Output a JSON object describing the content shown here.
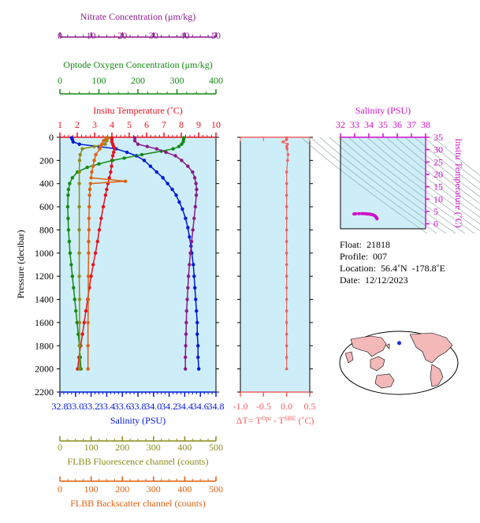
{
  "colors": {
    "nitrate": "#8b1a8b",
    "oxygen": "#128a12",
    "temperature": "#e8101e",
    "salinity": "#0018d8",
    "fluorescence": "#8c8c1a",
    "backscatter": "#e06010",
    "delta": "#f26060",
    "ts": "#d010c8",
    "panel_bg": "#cdeef8"
  },
  "chart_data": [
    {
      "type": "line",
      "name": "main-profile",
      "ylabel": "Pressure (decibar)",
      "ylim": [
        2200,
        0
      ],
      "yticks": [
        "0",
        "200",
        "400",
        "600",
        "800",
        "1000",
        "1200",
        "1400",
        "1600",
        "1800",
        "2000",
        "2200"
      ],
      "axes": {
        "nitrate": {
          "label": "Nitrate Concentration (μm/kg)",
          "range": [
            0,
            50
          ],
          "ticks": [
            "0",
            "10",
            "20",
            "30",
            "40",
            "50"
          ]
        },
        "oxygen": {
          "label": "Optode Oxygen Concentration (μm/kg)",
          "range": [
            0,
            400
          ],
          "ticks": [
            "0",
            "100",
            "200",
            "300",
            "400"
          ]
        },
        "temperature": {
          "label": "Insitu Temperature (˚C)",
          "range": [
            1,
            10
          ],
          "ticks": [
            "1",
            "2",
            "3",
            "4",
            "5",
            "6",
            "7",
            "8",
            "9",
            "10"
          ]
        },
        "salinity": {
          "label": "Salinity (PSU)",
          "range": [
            32.8,
            34.8
          ],
          "ticks": [
            "32.8",
            "33.0",
            "33.2",
            "33.4",
            "33.6",
            "33.8",
            "34.0",
            "34.2",
            "34.4",
            "34.6",
            "34.8"
          ]
        },
        "fluorescence": {
          "label": "FLBB Fluorescence channel (counts)",
          "range": [
            0,
            500
          ],
          "ticks": [
            "0",
            "100",
            "200",
            "300",
            "400",
            "500"
          ]
        },
        "backscatter": {
          "label": "FLBB Backscatter channel (counts)",
          "range": [
            0,
            500
          ],
          "ticks": [
            "0",
            "100",
            "200",
            "300",
            "400",
            "500"
          ]
        }
      },
      "series": [
        {
          "var": "salinity",
          "p": [
            5,
            20,
            40,
            60,
            80,
            100,
            130,
            160,
            200,
            250,
            300,
            350,
            400,
            450,
            500,
            560,
            620,
            700,
            780,
            860,
            940,
            1000,
            1100,
            1200,
            1300,
            1400,
            1500,
            1600,
            1700,
            1800,
            1900,
            2000
          ],
          "values": [
            32.95,
            32.96,
            32.97,
            33.05,
            33.3,
            33.52,
            33.66,
            33.78,
            33.88,
            33.96,
            34.04,
            34.12,
            34.18,
            34.24,
            34.29,
            34.33,
            34.37,
            34.41,
            34.44,
            34.46,
            34.48,
            34.49,
            34.51,
            34.52,
            34.53,
            34.54,
            34.55,
            34.56,
            34.56,
            34.57,
            34.57,
            34.58
          ]
        },
        {
          "var": "temperature",
          "p": [
            5,
            20,
            40,
            60,
            80,
            100,
            130,
            160,
            200,
            250,
            300,
            350,
            400,
            450,
            500,
            600,
            700,
            800,
            900,
            1000,
            1100,
            1200,
            1300,
            1400,
            1500,
            1600,
            1700,
            1800,
            1900,
            2000
          ],
          "values": [
            4.0,
            4.0,
            4.0,
            4.05,
            4.1,
            4.15,
            4.1,
            4.05,
            4.0,
            3.98,
            3.93,
            3.85,
            3.77,
            3.7,
            3.63,
            3.5,
            3.38,
            3.27,
            3.17,
            3.05,
            2.92,
            2.8,
            2.7,
            2.6,
            2.5,
            2.4,
            2.3,
            2.2,
            2.1,
            2.02
          ]
        },
        {
          "var": "oxygen",
          "p": [
            5,
            20,
            40,
            60,
            80,
            100,
            120,
            150,
            180,
            200,
            230,
            260,
            300,
            350,
            400,
            450,
            500,
            600,
            700,
            800,
            900,
            1000,
            1100,
            1200,
            1300,
            1400,
            1500,
            1600,
            1700,
            1800,
            1900,
            2000
          ],
          "values": [
            318,
            317,
            316,
            312,
            305,
            290,
            260,
            210,
            165,
            135,
            100,
            70,
            45,
            32,
            25,
            22,
            21,
            20,
            21,
            22,
            24,
            26,
            29,
            32,
            35,
            38,
            41,
            44,
            47,
            50,
            52,
            54
          ]
        },
        {
          "var": "nitrate",
          "p": [
            5,
            30,
            60,
            80,
            100,
            130,
            160,
            200,
            250,
            300,
            350,
            400,
            450,
            500,
            600,
            700,
            800,
            900,
            1000,
            1100,
            1200,
            1300,
            1400,
            1500,
            1600,
            1700,
            1800,
            1900,
            2000
          ],
          "values": [
            24,
            24,
            25,
            28,
            31,
            34,
            37,
            39,
            41,
            42.5,
            43.2,
            43.6,
            43.8,
            43.7,
            43.4,
            43,
            42.6,
            42.2,
            41.8,
            41.5,
            41.2,
            41,
            40.8,
            40.6,
            40.5,
            40.4,
            40.3,
            40.2,
            40.2
          ]
        },
        {
          "var": "fluorescence",
          "p": [
            5,
            30,
            60,
            80,
            100,
            150,
            200,
            300,
            400,
            600,
            800,
            1000,
            1200,
            1400,
            1600,
            1800,
            2000
          ],
          "values": [
            155,
            150,
            145,
            110,
            72,
            65,
            63,
            62,
            62,
            62,
            62,
            62,
            62,
            63,
            63,
            63,
            63
          ]
        },
        {
          "var": "backscatter",
          "p": [
            5,
            30,
            60,
            80,
            100,
            150,
            200,
            250,
            300,
            350,
            380,
            400,
            450,
            500,
            600,
            700,
            800,
            900,
            1000,
            1200,
            1400,
            1600,
            1800,
            2000
          ],
          "values": [
            148,
            140,
            135,
            130,
            128,
            115,
            110,
            106,
            102,
            100,
            210,
            98,
            96,
            95,
            94,
            93,
            93,
            92,
            92,
            91,
            91,
            90,
            90,
            90
          ]
        }
      ]
    },
    {
      "type": "line",
      "name": "delta-t",
      "xlabel": "ΔT= T",
      "xlabel_sup1": "Opt",
      "xlabel_mid": " - T",
      "xlabel_sup2": "SBE",
      "xlabel_tail": " (˚C)",
      "xlim": [
        -1.0,
        0.5
      ],
      "xticks": [
        "-1.0",
        "-0.5",
        "0.0",
        "0.5"
      ],
      "ylim": [
        2200,
        0
      ],
      "series": [
        {
          "p": [
            5,
            20,
            40,
            60,
            80,
            100,
            150,
            200,
            300,
            400,
            500,
            600,
            700,
            800,
            900,
            1000,
            1100,
            1200,
            1300,
            1400,
            1500,
            1600,
            1700,
            1800,
            1900,
            2000
          ],
          "values": [
            0.0,
            0.0,
            -0.08,
            0.02,
            0.0,
            0.01,
            0.03,
            0.02,
            0.0,
            0.0,
            0.0,
            0.0,
            0.0,
            0.0,
            0.0,
            0.0,
            0.0,
            0.0,
            0.0,
            0.0,
            0.0,
            0.0,
            0.0,
            0.0,
            0.0,
            0.0
          ]
        }
      ]
    },
    {
      "type": "scatter",
      "name": "ts-diagram",
      "xlabel": "Salinity (PSU)",
      "ylabel": "Insitu Temperature (˚C)",
      "xlim": [
        32,
        38
      ],
      "ylim": [
        -2,
        35
      ],
      "xticks": [
        "32",
        "33",
        "34",
        "35",
        "36",
        "37",
        "38"
      ],
      "yticks": [
        "0",
        "5",
        "10",
        "15",
        "20",
        "25",
        "30",
        "35"
      ],
      "x": [
        32.95,
        32.97,
        33.05,
        33.3,
        33.52,
        33.66,
        33.78,
        33.88,
        33.96,
        34.04,
        34.12,
        34.18,
        34.29,
        34.37,
        34.44,
        34.48,
        34.51,
        34.53,
        34.55,
        34.57,
        34.58
      ],
      "y": [
        4.0,
        4.0,
        4.05,
        4.1,
        4.15,
        4.1,
        4.05,
        4.0,
        3.98,
        3.93,
        3.85,
        3.77,
        3.63,
        3.38,
        3.17,
        2.92,
        2.7,
        2.5,
        2.3,
        2.1,
        2.02
      ]
    }
  ],
  "info": {
    "float": "Float:  21818",
    "profile": "Profile:  007",
    "location": "Location:  56.4˚N  -178.8˚E",
    "date": "Date:  12/12/2023"
  },
  "map": {
    "marker_lon": -178.8,
    "marker_lat": 56.4
  }
}
